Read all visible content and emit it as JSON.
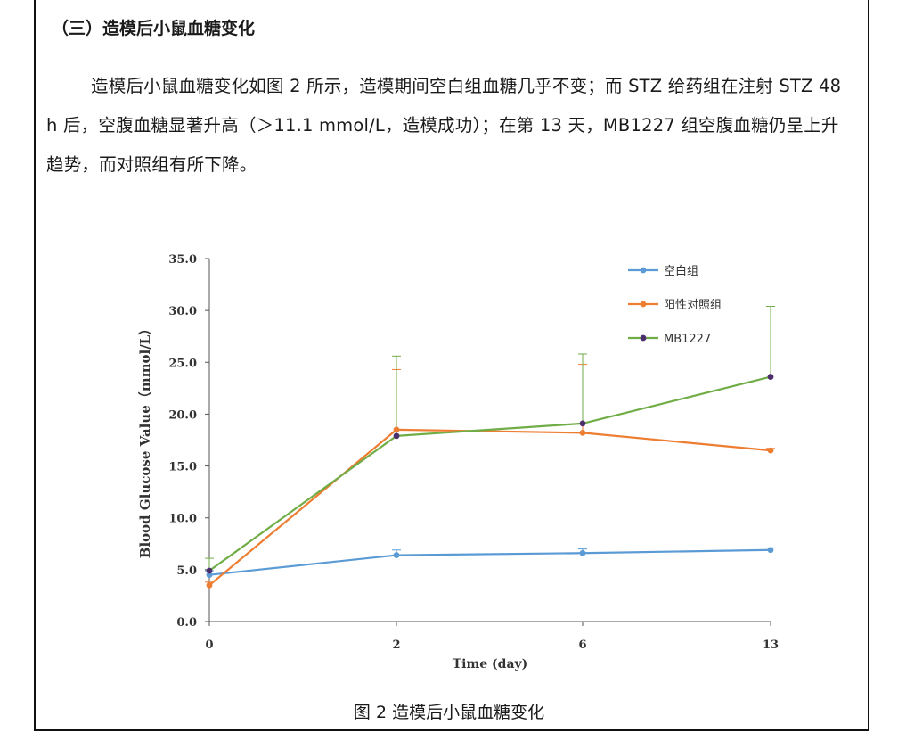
{
  "document": {
    "heading": "（三）造模后小鼠血糖变化",
    "paragraph": "造模后小鼠血糖变化如图 2 所示，造模期间空白组血糖几乎不变；而 STZ 给药组在注射 STZ 48 h 后，空腹血糖显著升高（＞11.1 mmol/L，造模成功）；在第 13 天，MB1227 组空腹血糖仍呈上升趋势，而对照组有所下降。",
    "caption": "图 2  造模后小鼠血糖变化"
  },
  "chart_data": {
    "type": "line",
    "title": "",
    "xlabel": "Time (day)",
    "ylabel": "Blood Glucose Value（mmol/L）",
    "categories": [
      "0",
      "2",
      "6",
      "13"
    ],
    "ylim": [
      0,
      35
    ],
    "yticks": [
      "0.0",
      "5.0",
      "10.0",
      "15.0",
      "20.0",
      "25.0",
      "30.0",
      "35.0"
    ],
    "grid": false,
    "legend_position": "top-right",
    "series": [
      {
        "name": "空白组",
        "color": "#5b9bd5",
        "values": [
          4.5,
          6.4,
          6.6,
          6.9
        ],
        "errors": [
          0.4,
          0.5,
          0.4,
          0.2
        ]
      },
      {
        "name": "阳性对照组",
        "color": "#ed7d31",
        "values": [
          3.5,
          18.5,
          18.2,
          16.5
        ],
        "errors": [
          0.3,
          5.8,
          6.6,
          0.2
        ]
      },
      {
        "name": "MB1227",
        "color": "#70ad47",
        "marker": "#4b2e6b",
        "values": [
          4.9,
          17.9,
          19.1,
          23.6
        ],
        "errors": [
          1.2,
          7.7,
          6.7,
          6.8
        ]
      }
    ]
  }
}
